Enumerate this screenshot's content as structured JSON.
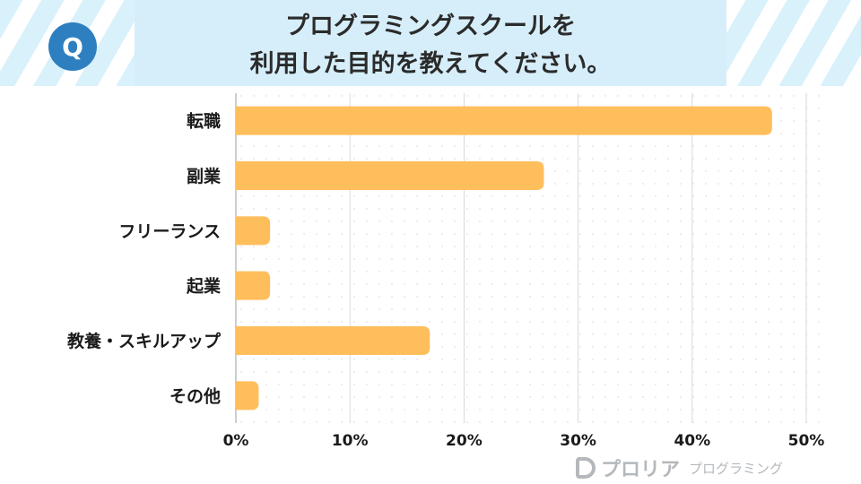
{
  "header": {
    "badge": "Q",
    "title_line1": "プログラミングスクールを",
    "title_line2": "利用した目的を教えてください。"
  },
  "chart_data": {
    "type": "bar",
    "orientation": "horizontal",
    "categories": [
      "転職",
      "副業",
      "フリーランス",
      "起業",
      "教養・スキルアップ",
      "その他"
    ],
    "values": [
      47,
      27,
      3,
      3,
      17,
      2
    ],
    "unit": "%",
    "xlim": [
      0,
      50
    ],
    "xticks": [
      "0%",
      "10%",
      "20%",
      "30%",
      "40%",
      "50%"
    ],
    "grid": true,
    "bar_color": "#ffbe5c"
  },
  "logo": {
    "main": "プロリア",
    "sub": "プログラミング"
  }
}
